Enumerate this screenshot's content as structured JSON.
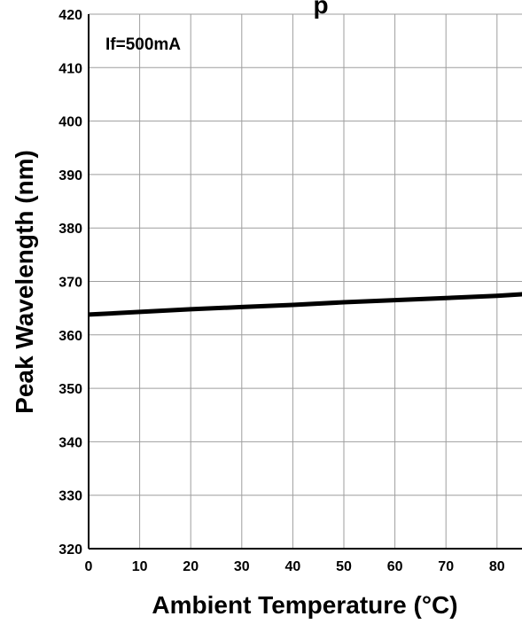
{
  "chart_data": {
    "type": "line",
    "title_fragment": "p",
    "annotation": "If=500mA",
    "xlabel": "Ambient Temperature (°C)",
    "ylabel": "Peak Wavelength (nm)",
    "xlim": [
      0,
      85
    ],
    "ylim": [
      320,
      420
    ],
    "xticks": [
      0,
      10,
      20,
      30,
      40,
      50,
      60,
      70,
      80
    ],
    "yticks": [
      320,
      330,
      340,
      350,
      360,
      370,
      380,
      390,
      400,
      410,
      420
    ],
    "grid": true,
    "series": [
      {
        "x": [
          0,
          10,
          20,
          30,
          40,
          50,
          60,
          70,
          80,
          85
        ],
        "y": [
          363.8,
          364.3,
          364.8,
          365.2,
          365.6,
          366.1,
          366.5,
          366.9,
          367.3,
          367.6
        ]
      }
    ],
    "colors": {
      "line": "#000000",
      "grid": "#9e9e9e",
      "axis": "#000000"
    }
  }
}
